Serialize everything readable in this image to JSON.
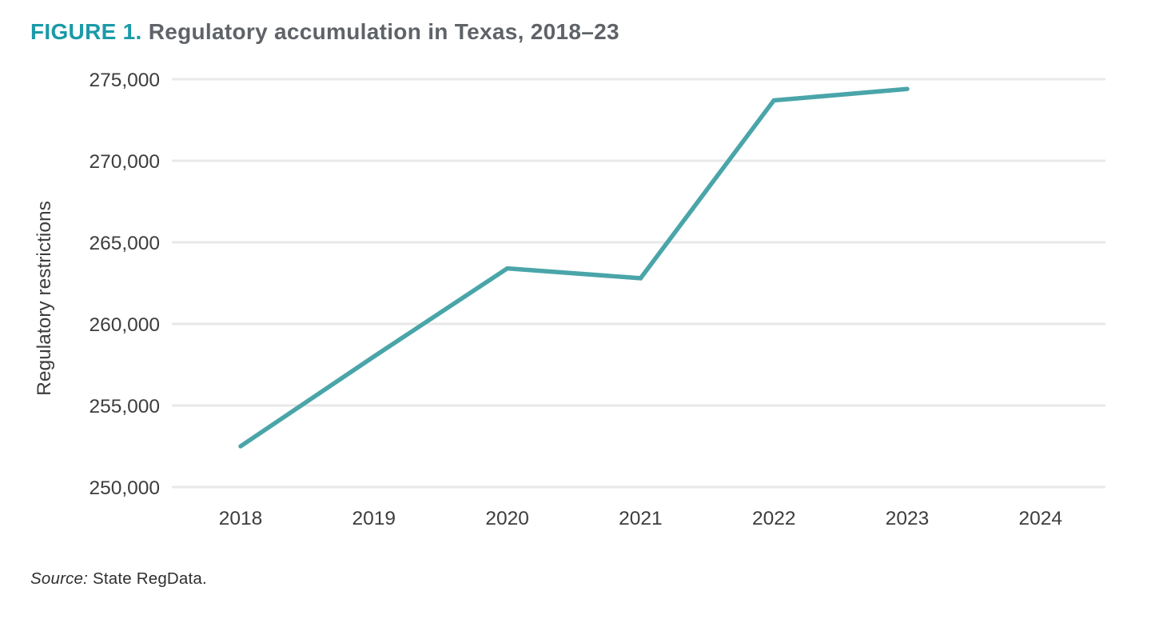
{
  "header": {
    "figure_label": "FIGURE 1.",
    "title": " Regulatory accumulation in Texas, 2018–23"
  },
  "footer": {
    "source_label": "Source:",
    "source_text": " State RegData."
  },
  "colors": {
    "accent_teal": "#1B9AA8",
    "line_teal": "#4AA5A9",
    "title_gray": "#5F6368",
    "tick_gray": "#3D3D3F",
    "gridline_gray": "#E8E8E8"
  },
  "chart_data": {
    "type": "line",
    "title": "Regulatory accumulation in Texas, 2018–23",
    "x": [
      2018,
      2019,
      2020,
      2021,
      2022,
      2023
    ],
    "series": [
      {
        "name": "Regulatory restrictions",
        "values": [
          252500,
          258000,
          263400,
          262800,
          273700,
          274400
        ]
      }
    ],
    "xlabel": "",
    "ylabel": "Regulatory restrictions",
    "x_ticks": [
      2018,
      2019,
      2020,
      2021,
      2022,
      2023,
      2024
    ],
    "y_ticks": [
      250000,
      255000,
      260000,
      265000,
      270000,
      275000
    ],
    "ylim": [
      250000,
      277000
    ],
    "xlim": [
      2017.5,
      2024.5
    ],
    "grid": "horizontal-only",
    "legend": "none",
    "line_color": "#4AA5A9"
  }
}
